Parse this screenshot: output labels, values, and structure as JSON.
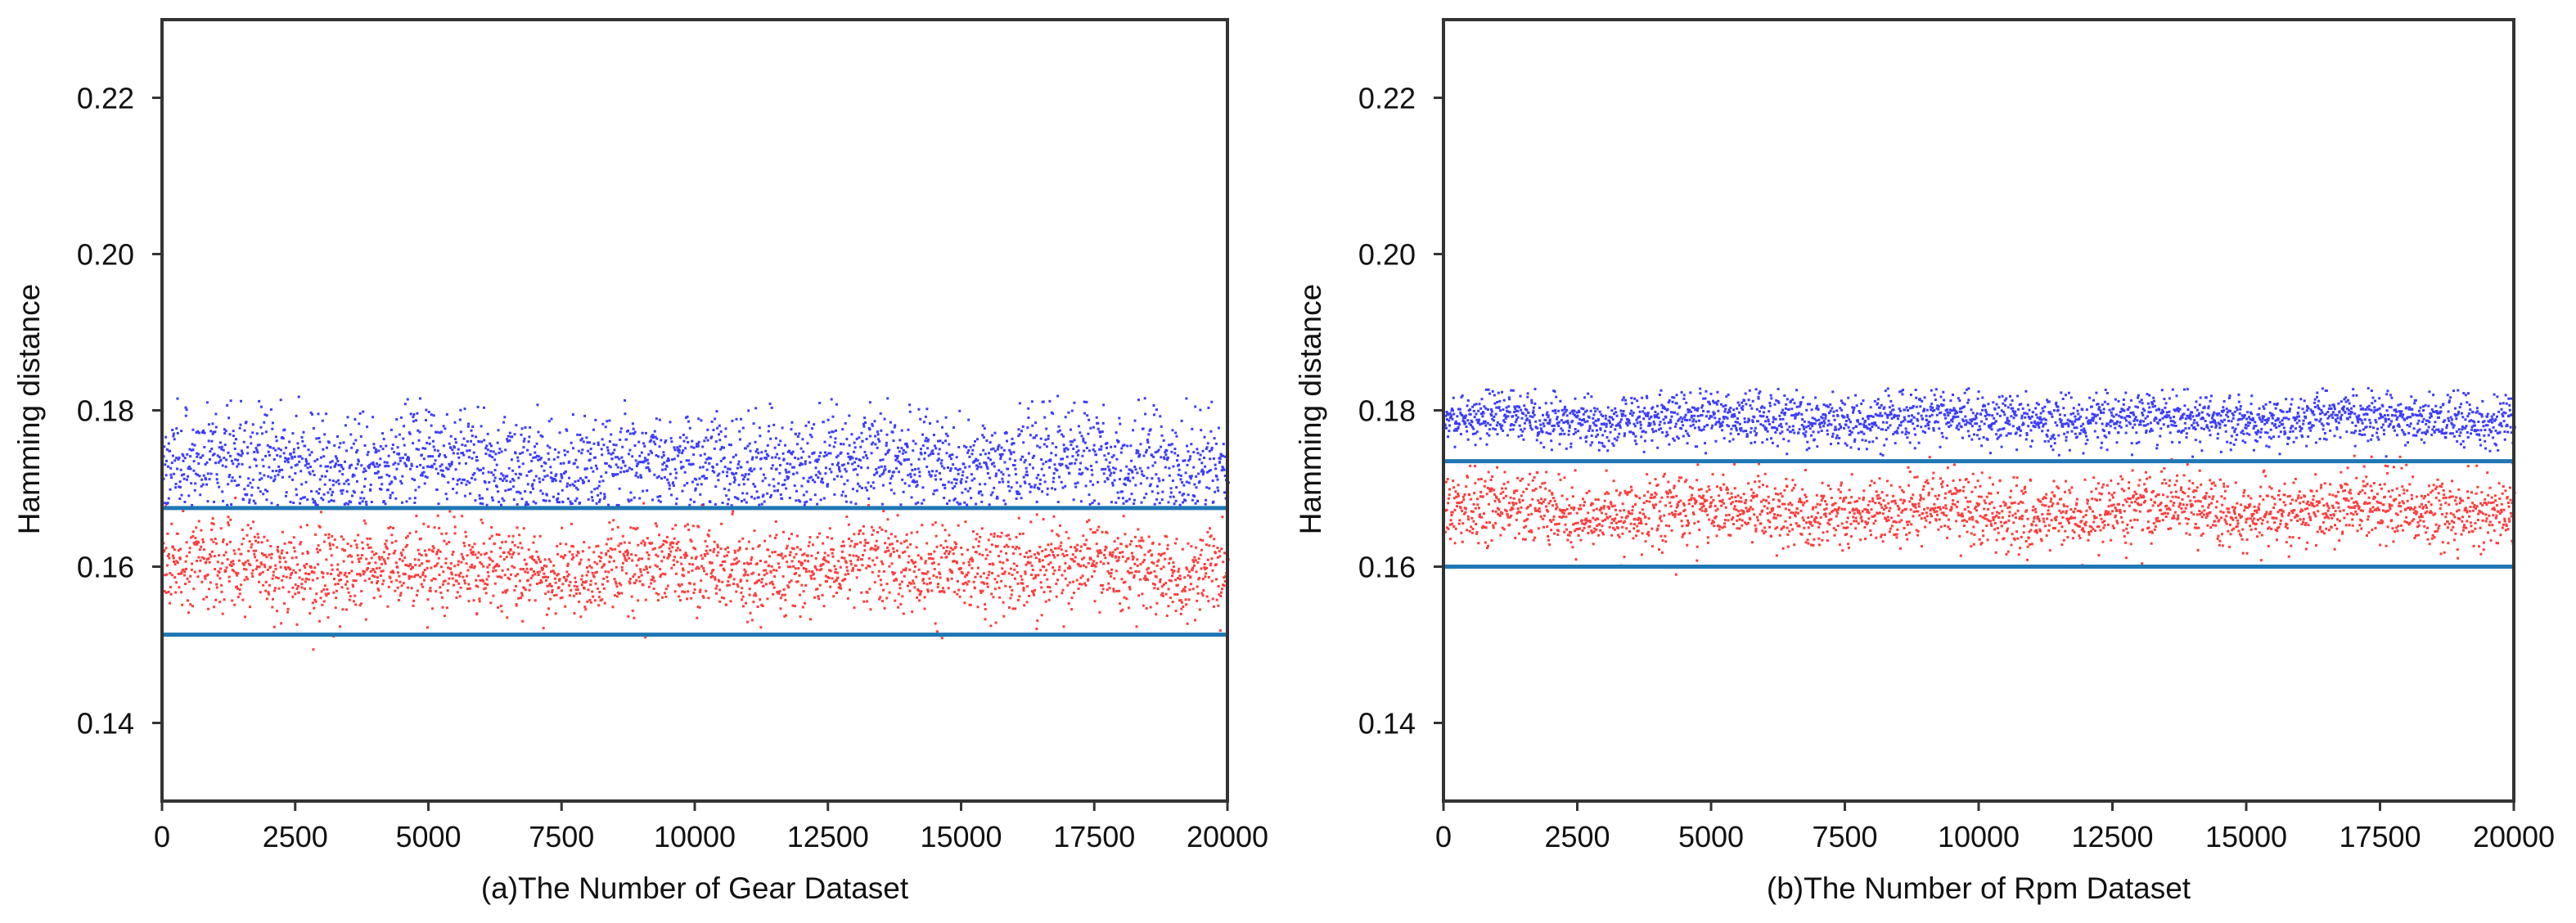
{
  "chart_data": [
    {
      "type": "scatter",
      "id": "panel-a",
      "xlabel": "(a)The Number of Gear Dataset",
      "ylabel": "Hamming distance",
      "xlim": [
        0,
        20000
      ],
      "ylim": [
        0.13,
        0.23
      ],
      "xticks": [
        0,
        2500,
        5000,
        7500,
        10000,
        12500,
        15000,
        17500,
        20000
      ],
      "yticks": [
        0.14,
        0.16,
        0.18,
        0.2,
        0.22
      ],
      "ytick_labels": [
        "0.14",
        "0.16",
        "0.18",
        "0.20",
        "0.22"
      ],
      "grid": false,
      "series": [
        {
          "name": "blue",
          "color": "#1a1aff",
          "n_points": 20000,
          "mean": 0.1735,
          "spread": 0.0032,
          "min": 0.168,
          "max": 0.182
        },
        {
          "name": "red",
          "color": "#ff1a1a",
          "n_points": 20000,
          "mean": 0.16,
          "spread": 0.0028,
          "min": 0.148,
          "max": 0.169
        }
      ],
      "hlines": [
        {
          "y": 0.1675,
          "color": "#1f77b4"
        },
        {
          "y": 0.1513,
          "color": "#1f77b4"
        }
      ]
    },
    {
      "type": "scatter",
      "id": "panel-b",
      "xlabel": "(b)The Number of Rpm Dataset",
      "ylabel": "Hamming distance",
      "xlim": [
        0,
        20000
      ],
      "ylim": [
        0.13,
        0.23
      ],
      "xticks": [
        0,
        2500,
        5000,
        7500,
        10000,
        12500,
        15000,
        17500,
        20000
      ],
      "yticks": [
        0.14,
        0.16,
        0.18,
        0.2,
        0.22
      ],
      "ytick_labels": [
        "0.14",
        "0.16",
        "0.18",
        "0.20",
        "0.22"
      ],
      "grid": false,
      "series": [
        {
          "name": "blue",
          "color": "#1a1aff",
          "n_points": 20000,
          "mean": 0.179,
          "spread": 0.0016,
          "min": 0.174,
          "max": 0.183
        },
        {
          "name": "red",
          "color": "#ff1a1a",
          "n_points": 20000,
          "mean": 0.1672,
          "spread": 0.0022,
          "min": 0.1575,
          "max": 0.1745
        }
      ],
      "hlines": [
        {
          "y": 0.1735,
          "color": "#1f77b4"
        },
        {
          "y": 0.16,
          "color": "#1f77b4"
        }
      ]
    }
  ]
}
